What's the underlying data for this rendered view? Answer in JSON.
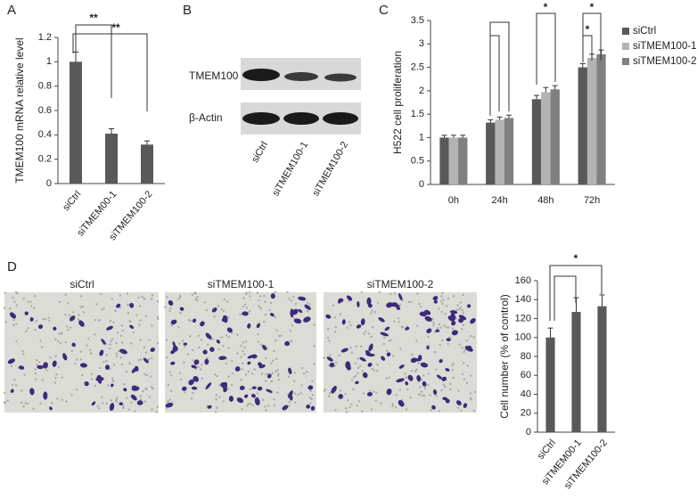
{
  "panel_labels": [
    "A",
    "B",
    "C",
    "D"
  ],
  "blot": {
    "bands": [
      "TMEM100",
      "β-Actin"
    ],
    "lanes": [
      "siCtrl",
      "siTMEM100-1",
      "siTMEM100-2"
    ]
  },
  "micrographs": [
    "siCtrl",
    "siTMEM100-1",
    "siTMEM100-2"
  ],
  "chart_data": [
    {
      "type": "bar",
      "y_label": "TMEM100 mRNA relative level",
      "categories": [
        "siCtrl",
        "siTMEM00-1",
        "siTMEM100-2"
      ],
      "series": [
        {
          "color": "#595959",
          "values": [
            1,
            0.41,
            0.32
          ],
          "errors": [
            0.08,
            0.04,
            0.03
          ]
        }
      ],
      "ylim": [
        0,
        1.2
      ],
      "yticks": [
        0,
        0.2,
        0.4,
        0.6,
        0.8,
        1,
        1.2
      ],
      "annotations": [
        "**",
        "**"
      ]
    },
    {
      "type": "bar",
      "y_label": "H522 cell proliferation",
      "categories": [
        "0h",
        "24h",
        "48h",
        "72h"
      ],
      "series": [
        {
          "name": "siCtrl",
          "color": "#595959",
          "values": [
            1,
            1.32,
            1.82,
            2.5
          ],
          "errors": [
            0.05,
            0.06,
            0.08,
            0.08
          ]
        },
        {
          "name": "siTMEM100-1",
          "color": "#b3b3b3",
          "values": [
            1,
            1.38,
            1.97,
            2.7
          ],
          "errors": [
            0.05,
            0.06,
            0.1,
            0.08
          ]
        },
        {
          "name": "siTMEM100-2",
          "color": "#808080",
          "values": [
            1,
            1.42,
            2.03,
            2.78
          ],
          "errors": [
            0.05,
            0.06,
            0.08,
            0.09
          ]
        }
      ],
      "ylim": [
        0,
        3.5
      ],
      "yticks": [
        0,
        0.5,
        1,
        1.5,
        2,
        2.5,
        3,
        3.5
      ],
      "legend": "right",
      "annotations": [
        "*",
        "*",
        "*"
      ]
    },
    {
      "type": "bar",
      "y_label": "Cell number (% of control)",
      "categories": [
        "siCtrl",
        "siTMEM00-1",
        "siTMEM100-2"
      ],
      "series": [
        {
          "color": "#595959",
          "values": [
            100,
            127,
            133
          ],
          "errors": [
            10,
            15,
            12
          ]
        }
      ],
      "ylim": [
        0,
        160
      ],
      "yticks": [
        0,
        20,
        40,
        60,
        80,
        100,
        120,
        140,
        160
      ],
      "annotations": [
        "*"
      ]
    }
  ]
}
